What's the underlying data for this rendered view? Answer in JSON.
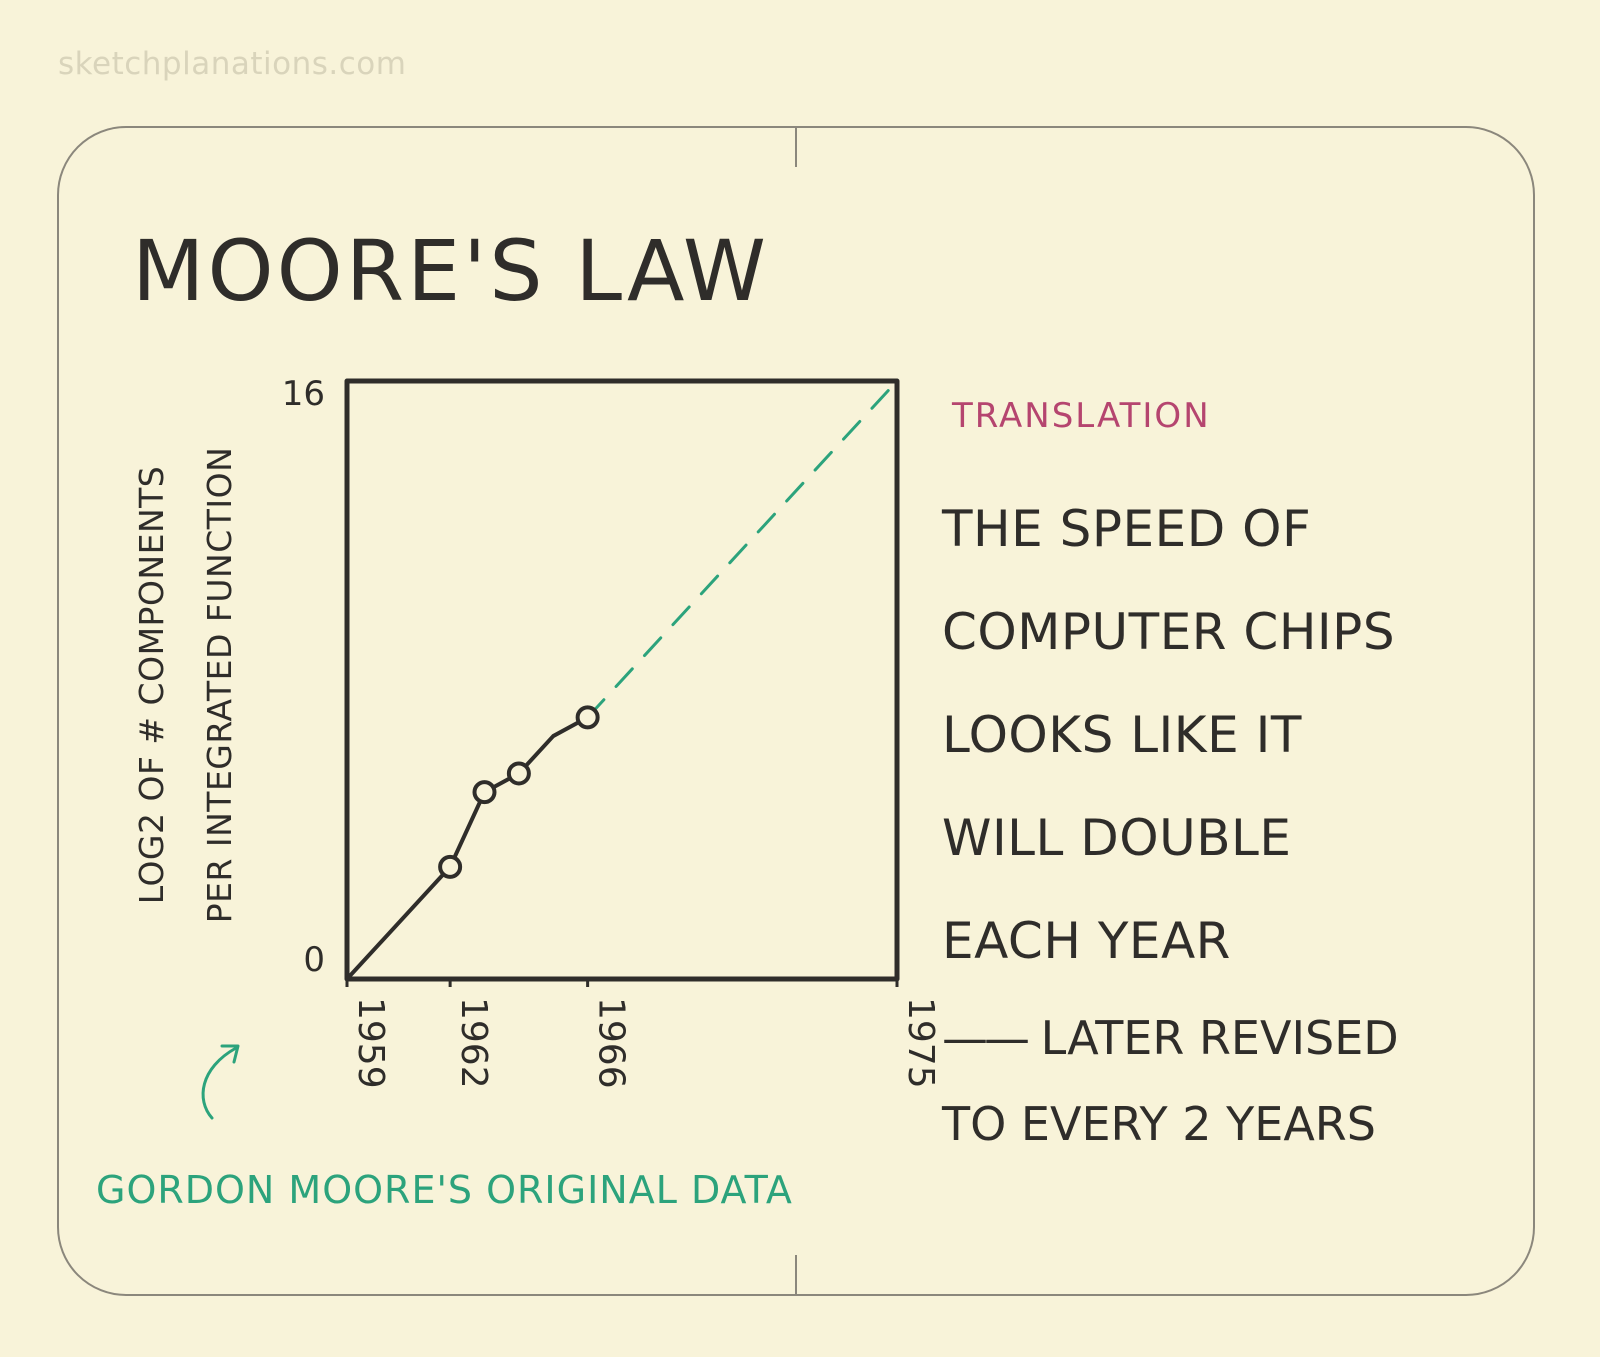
{
  "watermark": "sketchplanations.com",
  "title": "Moore's Law",
  "chart_data": {
    "type": "line",
    "ylabel_line1": "LOG2 OF # COMPONENTS",
    "ylabel_line2": "PER INTEGRATED FUNCTION",
    "ylim": [
      0,
      16
    ],
    "y_ticks": [
      "0",
      "16"
    ],
    "xlim": [
      1959,
      1975
    ],
    "x_ticks": [
      "1959",
      "1962",
      "1966",
      "1975"
    ],
    "series": [
      {
        "x": [
          1959,
          1962,
          1963,
          1964,
          1965,
          1966
        ],
        "y": [
          0,
          3,
          5,
          5.5,
          6.5,
          7
        ],
        "style": "solid",
        "color": "#2f2d2a"
      },
      {
        "x": [
          1966,
          1975
        ],
        "y": [
          7,
          16
        ],
        "style": "dashed",
        "color": "#2ca37c"
      }
    ],
    "markers_x": [
      1962,
      1963,
      1964,
      1966
    ],
    "grid": false
  },
  "translation": {
    "heading": "Translation",
    "lines": [
      "The speed of",
      "computer chips",
      "looks like it",
      "will double",
      "each year"
    ],
    "revised_dash": "——",
    "revised_lines": [
      "Later revised",
      "to every 2 years"
    ]
  },
  "footnote": "Gordon Moore's original data",
  "colors": {
    "ink": "#2f2d2a",
    "accent_green": "#2ca37c",
    "accent_pink": "#b5456f",
    "paper": "#f8f3d9"
  }
}
